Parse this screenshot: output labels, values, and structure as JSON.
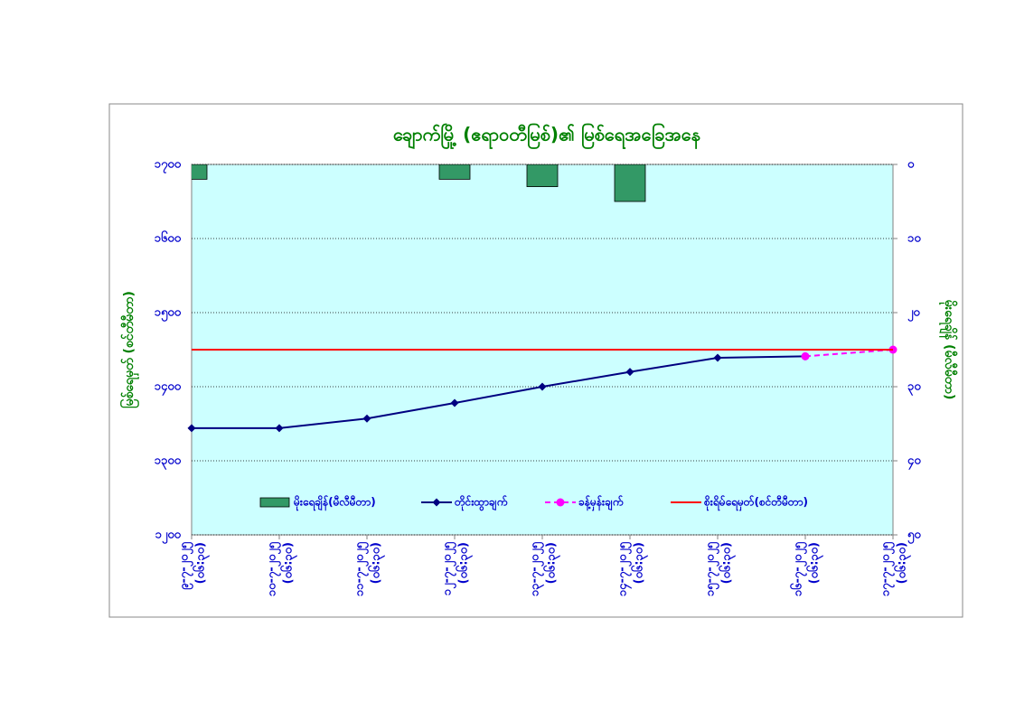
{
  "chart_data": {
    "type": "combo",
    "title": "ချောက်မြို့ (ဧရာဝတီမြစ်)၏ မြစ်ရေအခြေအနေ",
    "y_label": "မြစ်ရေမှတ် (စင်တီမီတာ)",
    "y2_label": "မိုးရေချိန် (မီလီမီတာ)",
    "categories": [
      [
        "၉-၇-၂၀၂၅",
        "(၀၆:၃၀)"
      ],
      [
        "၁၀-၇-၂၀၂၅",
        "(၀၆:၃၀)"
      ],
      [
        "၁၁-၇-၂၀၂၅",
        "(၀၆:၃၀)"
      ],
      [
        "၁၂-၇-၂၀၂၅",
        "(၀၆:၃၀)"
      ],
      [
        "၁၃-၇-၂၀၂၅",
        "(၀၆:၃၀)"
      ],
      [
        "၁၄-၇-၂၀၂၅",
        "(၀၆:၃၀)"
      ],
      [
        "၁၅-၇-၂၀၂၅",
        "(၀၆:၃၀)"
      ],
      [
        "၁၆-၇-၂၀၂၅",
        "(၀၆:၃၀)"
      ],
      [
        "၁၇-၇-၂၀၂၅",
        "(၀၆:၃၀)"
      ]
    ],
    "ylim": [
      1200,
      1700
    ],
    "yticks": [
      {
        "value": 1200,
        "label": "၁၂၀၀"
      },
      {
        "value": 1300,
        "label": "၁၃၀၀"
      },
      {
        "value": 1400,
        "label": "၁၄၀၀"
      },
      {
        "value": 1500,
        "label": "၁၅၀၀"
      },
      {
        "value": 1600,
        "label": "၁၆၀၀"
      },
      {
        "value": 1700,
        "label": "၁၇၀၀"
      }
    ],
    "y2lim": [
      50,
      0
    ],
    "y2ticks": [
      {
        "value": 0,
        "label": "၀"
      },
      {
        "value": 10,
        "label": "၁၀"
      },
      {
        "value": 20,
        "label": "၂၀"
      },
      {
        "value": 30,
        "label": "၃၀"
      },
      {
        "value": 40,
        "label": "၄၀"
      },
      {
        "value": 50,
        "label": "၅၀"
      }
    ],
    "grid": true,
    "series": [
      {
        "name": "မိုးရေချိန်(မီလီမီတာ)",
        "type": "bar",
        "axis": "y2",
        "color": "#339966",
        "values": [
          2,
          0,
          0,
          2,
          3,
          5,
          0,
          0,
          0
        ]
      },
      {
        "name": "တိုင်းထွာချက်",
        "type": "line",
        "marker": "diamond",
        "color": "#000080",
        "values": [
          1344,
          1344,
          1357,
          1378,
          1400,
          1420,
          1439,
          1441,
          null
        ]
      },
      {
        "name": "ခန့်မှန်းချက်",
        "type": "line",
        "marker": "circle",
        "dashed": true,
        "color": "#ff00ff",
        "values": [
          null,
          null,
          null,
          null,
          null,
          null,
          null,
          1441,
          1450
        ]
      },
      {
        "name": "စိုးရိမ်ရေမှတ်(စင်တီမီတာ)",
        "type": "line",
        "color": "#ff0000",
        "values": [
          1450,
          1450,
          1450,
          1450,
          1450,
          1450,
          1450,
          1450,
          1450
        ]
      }
    ]
  }
}
